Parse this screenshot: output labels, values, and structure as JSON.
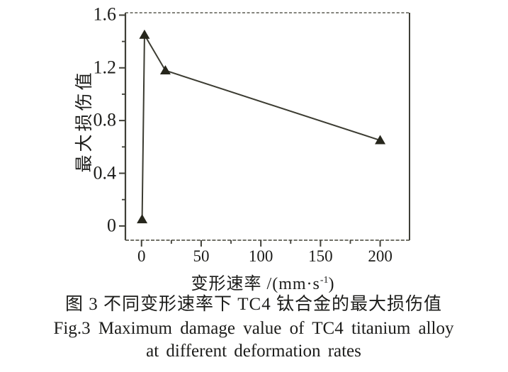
{
  "figure": {
    "y_axis_label": "最大损伤值",
    "x_axis_label_prefix": "变形速率 /(mm·s",
    "x_axis_label_sup": "-1",
    "x_axis_label_suffix": ")",
    "caption_zh": "图 3  不同变形速率下 TC4 钛合金的最大损伤值",
    "caption_en_line1": "Fig.3  Maximum damage value of TC4 titanium alloy",
    "caption_en_line2": "at different deformation rates"
  },
  "chart_data": {
    "type": "line",
    "title": "",
    "xlabel": "变形速率 /(mm·s⁻¹)",
    "ylabel": "最大损伤值",
    "x": [
      0.5,
      2.5,
      20,
      200
    ],
    "series": [
      {
        "name": "最大损伤值",
        "values": [
          0.05,
          1.45,
          1.18,
          0.65
        ]
      }
    ],
    "marker": "filled-triangle-up",
    "grid": false,
    "legend": "none",
    "xlim": [
      -13.5,
      224.6
    ],
    "ylim": [
      -0.108,
      1.618
    ],
    "x_ticks": {
      "major": [
        0,
        50,
        100,
        150,
        200
      ],
      "minor": [
        25,
        75,
        125,
        175
      ],
      "labels": [
        "0",
        "50",
        "100",
        "150",
        "200"
      ]
    },
    "y_ticks": {
      "major": [
        0,
        0.4,
        0.8,
        1.2,
        1.6
      ],
      "minor": [
        0.2,
        0.6,
        1.0,
        1.4
      ],
      "labels": [
        "0",
        "0.4",
        "0.8",
        "1.2",
        "1.6"
      ]
    },
    "colors": {
      "line": "#3c3c32",
      "marker": "#26261c",
      "axis": "#3f3f37",
      "frame_dashed": "#5c5c52",
      "text": "#1c1c1a",
      "background": "#ffffff"
    }
  }
}
